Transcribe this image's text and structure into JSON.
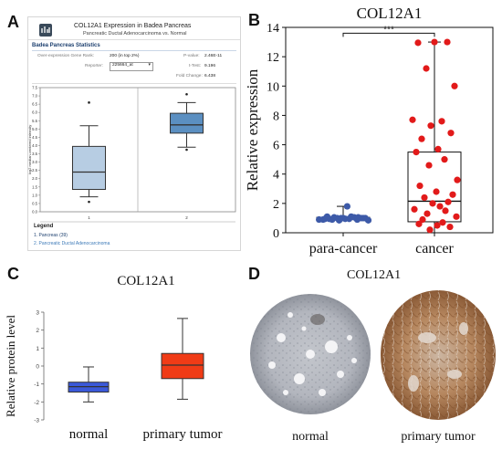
{
  "panels": {
    "A": {
      "letter": "A",
      "header_title": "COL12A1 Expression in Badea Pancreas",
      "header_subtitle": "Pancreatic Ductal Adenocarcinoma vs. Normal",
      "stats_title": "Badea Pancreas Statistics",
      "stats": {
        "rank_label": "Over-expression Gene Rank:",
        "rank_value": "200 (in top 2%)",
        "reporter_label": "Reporter:",
        "reporter_value": "225664_at",
        "pvalue_label": "P-value:",
        "pvalue_value": "2.46E-11",
        "ttest_label": "t-Test:",
        "ttest_value": "9.196",
        "fold_label": "Fold Change:",
        "fold_value": "6.438"
      },
      "ylabel": "log2 median-centered intensity",
      "legend_title": "Legend",
      "legend_items": [
        "1. Pancreas (39)",
        "2. Pancreatic Ductal Adenocarcinoma"
      ]
    },
    "B": {
      "letter": "B",
      "title": "COL12A1",
      "ylabel": "Relative expression",
      "significance": "***"
    },
    "C": {
      "letter": "C",
      "title": "COL12A1",
      "ylabel": "Relative protein level"
    },
    "D": {
      "letter": "D",
      "title": "COL12A1",
      "labels": [
        "normal",
        "primary tumor"
      ]
    }
  },
  "chart_data": [
    {
      "panel": "A",
      "type": "box",
      "ylabel": "log2 median-centered intensity",
      "ylim": [
        0.0,
        7.5
      ],
      "yticks": [
        0.0,
        0.5,
        1.0,
        1.5,
        2.0,
        2.5,
        3.0,
        3.5,
        4.0,
        4.5,
        5.0,
        5.5,
        6.0,
        6.5,
        7.0,
        7.5
      ],
      "categories": [
        "1",
        "2"
      ],
      "boxes": [
        {
          "category": "1",
          "whisker_low": 0.9,
          "q1": 1.35,
          "median": 2.4,
          "q3": 3.95,
          "whisker_high": 5.2,
          "outliers": [
            6.6,
            0.6
          ],
          "color": "#b7cde3"
        },
        {
          "category": "2",
          "whisker_low": 3.9,
          "q1": 4.75,
          "median": 5.25,
          "q3": 5.95,
          "whisker_high": 6.6,
          "outliers": [
            7.1,
            3.75
          ],
          "color": "#5b8fc1"
        }
      ]
    },
    {
      "panel": "B",
      "type": "box-scatter",
      "title": "COL12A1",
      "ylabel": "Relative expression",
      "ylim": [
        0,
        14
      ],
      "yticks": [
        0,
        2,
        4,
        6,
        8,
        10,
        12,
        14
      ],
      "categories": [
        "para-cancer",
        "cancer"
      ],
      "series": [
        {
          "name": "para-cancer",
          "color": "#3d5aa8",
          "box": {
            "whisker_low": 0.85,
            "q1": 0.95,
            "median": 1.0,
            "q3": 1.05,
            "whisker_high": 1.8
          },
          "points": [
            1.0,
            0.95,
            0.9,
            1.05,
            1.0,
            0.9,
            1.1,
            0.85,
            1.0,
            0.95,
            1.8,
            0.9,
            1.05,
            1.0,
            0.85,
            1.1,
            0.95,
            1.0,
            0.9,
            1.05,
            1.0,
            0.95
          ]
        },
        {
          "name": "cancer",
          "color": "#e21a1a",
          "box": {
            "whisker_low": 0.0,
            "q1": 0.75,
            "median": 2.15,
            "q3": 5.5,
            "whisker_high": 13.0
          },
          "points": [
            13.0,
            12.95,
            13.0,
            11.2,
            10.0,
            7.7,
            7.6,
            7.3,
            6.8,
            6.4,
            5.7,
            5.5,
            5.0,
            4.6,
            3.6,
            3.2,
            2.8,
            2.6,
            2.4,
            2.1,
            2.0,
            1.8,
            1.6,
            1.5,
            1.3,
            1.1,
            0.9,
            0.7,
            0.6,
            0.5,
            0.4,
            0.2
          ]
        }
      ],
      "annotation": "***"
    },
    {
      "panel": "C",
      "type": "box",
      "title": "COL12A1",
      "ylabel": "Relative protein level",
      "ylim": [
        -3,
        3
      ],
      "yticks": [
        -3,
        -2,
        -1,
        0,
        1,
        2,
        3
      ],
      "categories": [
        "normal",
        "primary tumor"
      ],
      "boxes": [
        {
          "category": "normal",
          "whisker_low": -2.0,
          "q1": -1.45,
          "median": -1.15,
          "q3": -0.9,
          "whisker_high": -0.05,
          "color": "#3b59d9"
        },
        {
          "category": "primary tumor",
          "whisker_low": -1.85,
          "q1": -0.7,
          "median": 0.05,
          "q3": 0.7,
          "whisker_high": 2.65,
          "color": "#f03b16"
        }
      ]
    }
  ]
}
